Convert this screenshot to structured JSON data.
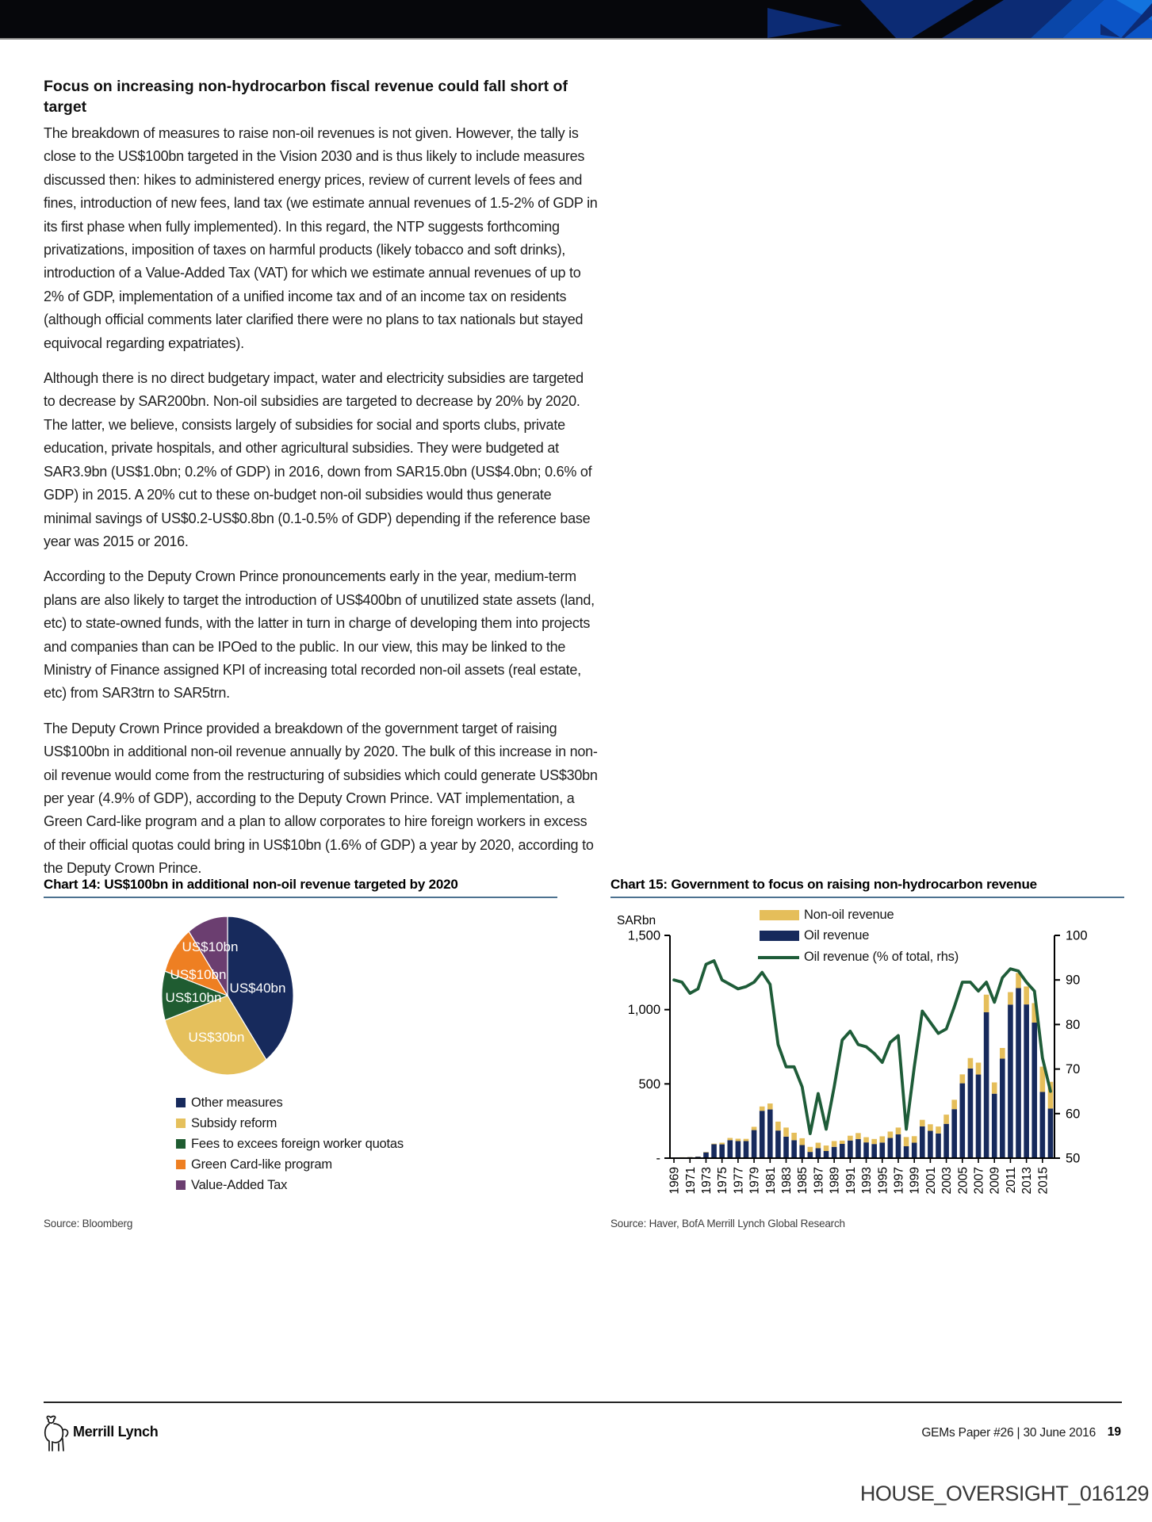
{
  "colors": {
    "header_black": "#06070b",
    "header_navy": "#0c2b74",
    "header_mid_blue": "#0a46a8",
    "header_royal": "#0b54c6",
    "header_light_blue": "#1273de",
    "axis_black": "#000000",
    "title_rule": "#4d7290"
  },
  "article": {
    "heading": "Focus on increasing non-hydrocarbon fiscal revenue could fall short of target",
    "paragraphs": [
      "The breakdown of measures to raise non-oil revenues is not given. However, the tally is close to the US$100bn targeted in the Vision 2030 and is thus likely to include measures discussed then: hikes to administered energy prices, review of current levels of fees and fines, introduction of new fees, land tax (we estimate annual revenues of 1.5-2% of GDP in its first phase when fully implemented). In this regard, the NTP suggests forthcoming privatizations, imposition of taxes on harmful products (likely tobacco and soft drinks), introduction of a Value-Added Tax (VAT) for which we estimate annual revenues of up to 2% of GDP, implementation of a unified income tax and of an income tax on residents (although official comments later clarified there were no plans to tax nationals but stayed equivocal regarding expatriates).",
      "Although there is no direct budgetary impact, water and electricity subsidies are targeted to decrease by SAR200bn. Non-oil subsidies are targeted to decrease by 20% by 2020. The latter, we believe, consists largely of subsidies for social and sports clubs, private education, private hospitals, and other agricultural subsidies. They were budgeted at SAR3.9bn (US$1.0bn; 0.2% of GDP) in 2016, down from SAR15.0bn (US$4.0bn; 0.6% of GDP) in 2015. A 20% cut to these on-budget non-oil subsidies would thus generate minimal savings of US$0.2-US$0.8bn (0.1-0.5% of GDP) depending if the reference base year was 2015 or 2016.",
      "According to the Deputy Crown Prince pronouncements early in the year, medium-term plans are also likely to target the introduction of US$400bn of unutilized state assets (land, etc) to state-owned funds, with the latter in turn in charge of developing them into projects and companies than can be IPOed to the public. In our view, this may be linked to the Ministry of Finance assigned KPI of increasing total recorded non-oil assets (real estate, etc) from SAR3trn to SAR5trn.",
      "The Deputy Crown Prince provided a breakdown of the government target of raising US$100bn in additional non-oil revenue annually by 2020. The bulk of this increase in non-oil revenue would come from the restructuring of subsidies which could generate US$30bn per year (4.9% of GDP), according to the Deputy Crown Prince. VAT implementation, a Green Card-like program and a plan to allow corporates to hire foreign workers in excess of their official quotas could bring in US$10bn (1.6% of GDP) a year by 2020, according to the Deputy Crown Prince."
    ]
  },
  "chart_data": [
    {
      "type": "pie",
      "title": "Chart 14: US$100bn in additional non-oil revenue targeted by 2020",
      "start_angle_deg": 0,
      "direction": "clockwise",
      "slices": [
        {
          "label": "Other measures",
          "value": 40,
          "display": "US$40bn",
          "color": "#172a5c"
        },
        {
          "label": "Subsidy reform",
          "value": 30,
          "display": "US$30bn",
          "color": "#e5c05c"
        },
        {
          "label": "Fees to excees foreign worker quotas",
          "value": 10,
          "display": "US$10bn",
          "color": "#1f5c31"
        },
        {
          "label": "Green Card-like program",
          "value": 10,
          "display": "US$10bn",
          "color": "#ee7f22"
        },
        {
          "label": "Value-Added Tax",
          "value": 10,
          "display": "US$10bn",
          "color": "#6b3e70"
        }
      ],
      "source": "Source: Bloomberg"
    },
    {
      "type": "bar+line",
      "title": "Chart 15: Government to focus on raising non-hydrocarbon revenue",
      "unit_label": "SARbn",
      "years": [
        1969,
        1970,
        1971,
        1972,
        1973,
        1974,
        1975,
        1976,
        1977,
        1978,
        1979,
        1980,
        1981,
        1982,
        1983,
        1984,
        1985,
        1986,
        1987,
        1988,
        1989,
        1990,
        1991,
        1992,
        1993,
        1994,
        1995,
        1996,
        1997,
        1998,
        1999,
        2000,
        2001,
        2002,
        2003,
        2004,
        2005,
        2006,
        2007,
        2008,
        2009,
        2010,
        2011,
        2012,
        2013,
        2014,
        2015,
        2016
      ],
      "series": [
        {
          "name": "Non-oil revenue",
          "type": "bar",
          "stack": "revenue",
          "color": "#e5be5a",
          "values": [
            0.5,
            0.6,
            1,
            1,
            3,
            4,
            11,
            15,
            16,
            15,
            22,
            29,
            40,
            60,
            61,
            50,
            46,
            34,
            37,
            37,
            39,
            22,
            32,
            41,
            35,
            34,
            42,
            43,
            46,
            62,
            44,
            44,
            44,
            47,
            62,
            63,
            60,
            70,
            80,
            118,
            76,
            72,
            84,
            102,
            121,
            131,
            170,
            180
          ]
        },
        {
          "name": "Oil revenue",
          "type": "bar",
          "stack": "revenue",
          "color": "#172a5c",
          "values": [
            4.5,
            5.4,
            7,
            10,
            39,
            94,
            93,
            121,
            115,
            115,
            189,
            319,
            328,
            186,
            145,
            121,
            88,
            42,
            67,
            48,
            76,
            96,
            119,
            128,
            106,
            95,
            105,
            136,
            160,
            80,
            104,
            214,
            184,
            166,
            231,
            330,
            504,
            604,
            563,
            983,
            434,
            670,
            1034,
            1145,
            1035,
            913,
            446,
            334
          ]
        },
        {
          "name": "Oil revenue (% of total, rhs)",
          "type": "line",
          "axis": "right",
          "color": "#1e5c38",
          "values": [
            90,
            89.5,
            87,
            88,
            93.5,
            94.3,
            90,
            89,
            88,
            88.5,
            89.5,
            91.7,
            89,
            75.5,
            70.5,
            70.5,
            66,
            55.5,
            64.5,
            56.5,
            66,
            76.5,
            78.5,
            75.5,
            75,
            73.5,
            71.5,
            76,
            77.5,
            56.5,
            70.5,
            83,
            80.5,
            78,
            79,
            84,
            89.5,
            89.5,
            87.5,
            89.5,
            85,
            90.5,
            92.5,
            92,
            89.5,
            87.5,
            72.5,
            65
          ]
        }
      ],
      "left_axis": {
        "min": 0,
        "max": 1500,
        "tick_values": [
          1500,
          1000,
          500,
          0
        ],
        "tick_labels": [
          "1,500",
          "1,000",
          "500",
          "-"
        ]
      },
      "right_axis": {
        "min": 50,
        "max": 100,
        "tick_values": [
          100,
          90,
          80,
          70,
          60,
          50
        ],
        "tick_labels": [
          "100",
          "90",
          "80",
          "70",
          "60",
          "50"
        ]
      },
      "x_tick_labels": [
        "1969",
        "1971",
        "1973",
        "1975",
        "1977",
        "1979",
        "1981",
        "1983",
        "1985",
        "1987",
        "1989",
        "1991",
        "1993",
        "1995",
        "1997",
        "1999",
        "2001",
        "2003",
        "2005",
        "2007",
        "2009",
        "2011",
        "2013",
        "2015"
      ],
      "legend_position": "top",
      "grid": false,
      "source": "Source: Haver, BofA Merrill Lynch Global Research"
    }
  ],
  "footer": {
    "brand": "Merrill Lynch",
    "doc_ref": "GEMs Paper #26 | 30 June 2016",
    "page_number": "19"
  },
  "watermark": "HOUSE_OVERSIGHT_016129"
}
